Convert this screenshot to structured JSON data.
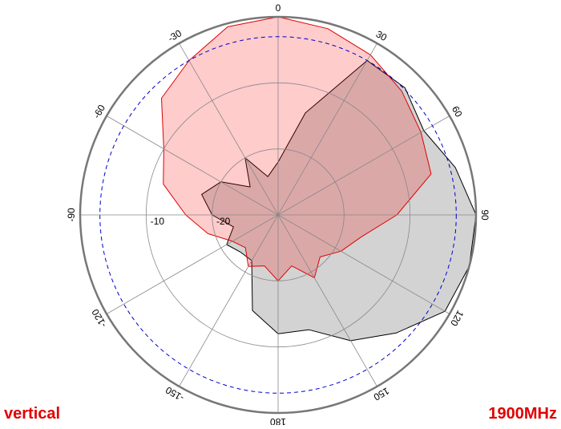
{
  "chart_data": {
    "type": "polar",
    "theta": [
      -165,
      -150,
      -135,
      -120,
      -105,
      -90,
      -75,
      -60,
      -45,
      -30,
      -15,
      0,
      15,
      30,
      45,
      60,
      75,
      90,
      105,
      120,
      135,
      150,
      165,
      180
    ],
    "series": [
      {
        "color": "#000000",
        "fill": "#d3d3d3",
        "values": [
          -15,
          -22,
          -22,
          -21,
          -23,
          -20,
          -18,
          -20,
          -24,
          -20,
          -24,
          -22,
          -14,
          -3,
          -2.8,
          -4.5,
          -2.2,
          0,
          0,
          -0.8,
          -4.7,
          -8,
          -12,
          -12
        ]
      },
      {
        "color": "#e00000",
        "fill": "rgba(255,0,0,0.2)",
        "values": [
          -22,
          -21,
          -23,
          -22,
          -19,
          -16,
          -12,
          -10,
          -5,
          -3,
          -0.5,
          0,
          -0.8,
          -2,
          -3.5,
          -5,
          -6,
          -12,
          -17,
          -19,
          -21,
          -19,
          -22,
          -20
        ]
      }
    ],
    "rlim": [
      -30,
      0
    ],
    "rticks": [
      -20,
      -10
    ],
    "ref_level": -3,
    "thetaticks": [
      0,
      30,
      60,
      90,
      120,
      150,
      180,
      -150,
      -120,
      -90,
      -60,
      -30
    ],
    "annotations": [
      "vertical",
      "1900MHz"
    ]
  }
}
